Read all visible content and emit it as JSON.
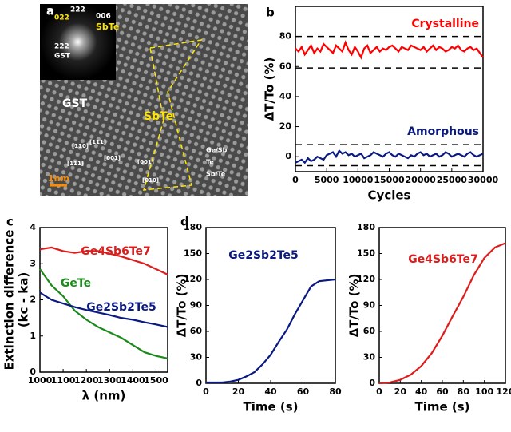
{
  "panel_labels": [
    "a",
    "b",
    "c",
    "d"
  ],
  "image_panel": {
    "texts": [
      "222",
      "022",
      "006",
      "SbTe",
      "222",
      "GST",
      "GST",
      "SbTe",
      "[110]",
      "[111]",
      "[001]",
      "[11̅1]",
      "[001]",
      "[010]",
      "Ge/Sb",
      "Te",
      "Sb/Te",
      "1nm"
    ]
  },
  "chart_data": [
    {
      "type": "line",
      "xlabel": "Cycles",
      "ylabel": "ΔT/To (%)",
      "x": [
        0,
        500,
        1000,
        1500,
        2000,
        2500,
        3000,
        3500,
        4000,
        4500,
        5000,
        5500,
        6000,
        6500,
        7000,
        7500,
        8000,
        8500,
        9000,
        9500,
        10000,
        10500,
        11000,
        11500,
        12000,
        12500,
        13000,
        13500,
        14000,
        14500,
        15000,
        15500,
        16000,
        16500,
        17000,
        17500,
        18000,
        18500,
        19000,
        19500,
        20000,
        20500,
        21000,
        21500,
        22000,
        22500,
        23000,
        23500,
        24000,
        24500,
        25000,
        25500,
        26000,
        26500,
        27000,
        27500,
        28000,
        28500,
        29000,
        29500,
        30000
      ],
      "xlim": [
        0,
        30000
      ],
      "xticks": [
        0,
        5000,
        10000,
        15000,
        20000,
        25000,
        30000
      ],
      "ylim": [
        -10,
        100
      ],
      "yticks": [
        0,
        20,
        40,
        60,
        80
      ],
      "reference_lines": [
        80,
        59,
        8,
        -6
      ],
      "series": [
        {
          "name": "Crystalline",
          "color": "#ff0000",
          "values": [
            72,
            70,
            73,
            68,
            71,
            74,
            69,
            72,
            70,
            75,
            73,
            71,
            69,
            74,
            72,
            70,
            76,
            71,
            68,
            73,
            70,
            66,
            72,
            74,
            69,
            71,
            73,
            70,
            72,
            71,
            73,
            74,
            72,
            70,
            73,
            72,
            71,
            74,
            73,
            72,
            71,
            73,
            70,
            72,
            74,
            71,
            73,
            72,
            70,
            71,
            73,
            72,
            74,
            71,
            70,
            72,
            73,
            71,
            72,
            69,
            66
          ]
        },
        {
          "name": "Amorphous",
          "color": "#0a1a80",
          "values": [
            -4,
            -3,
            -2,
            -4,
            -1,
            -3,
            -2,
            0,
            -1,
            -2,
            1,
            2,
            3,
            0,
            4,
            2,
            3,
            1,
            2,
            0,
            1,
            2,
            -1,
            0,
            1,
            3,
            2,
            1,
            0,
            2,
            3,
            1,
            0,
            2,
            1,
            0,
            -1,
            1,
            0,
            2,
            3,
            1,
            2,
            0,
            1,
            2,
            0,
            1,
            3,
            2,
            0,
            1,
            2,
            1,
            0,
            2,
            3,
            1,
            0,
            1,
            2
          ]
        }
      ]
    },
    {
      "type": "line",
      "xlabel": "λ (nm)",
      "ylabel": [
        "Extinction difference",
        "(kc - ka)"
      ],
      "x": [
        1000,
        1050,
        1100,
        1150,
        1200,
        1250,
        1300,
        1350,
        1400,
        1450,
        1500,
        1550
      ],
      "xlim": [
        1000,
        1550
      ],
      "xticks": [
        1000,
        1100,
        1200,
        1300,
        1400,
        1500
      ],
      "ylim": [
        0,
        4
      ],
      "yticks": [
        0,
        1,
        2,
        3,
        4
      ],
      "series": [
        {
          "name": "Ge4Sb6Te7",
          "color": "#dd1c1c",
          "values": [
            3.4,
            3.45,
            3.35,
            3.3,
            3.35,
            3.35,
            3.28,
            3.2,
            3.1,
            3.0,
            2.85,
            2.7
          ]
        },
        {
          "name": "GeTe",
          "color": "#1a8a1a",
          "values": [
            2.85,
            2.4,
            2.1,
            1.7,
            1.45,
            1.25,
            1.1,
            0.95,
            0.75,
            0.55,
            0.45,
            0.38
          ]
        },
        {
          "name": "Ge2Sb2Te5",
          "color": "#0a1a80",
          "values": [
            2.2,
            2.0,
            1.9,
            1.8,
            1.72,
            1.65,
            1.58,
            1.5,
            1.45,
            1.38,
            1.32,
            1.25
          ]
        }
      ]
    },
    {
      "type": "line",
      "xlabel": "Time (s)",
      "ylabel": "ΔT/To (%)",
      "x": [
        0,
        5,
        10,
        15,
        20,
        25,
        30,
        35,
        40,
        45,
        50,
        55,
        60,
        65,
        70,
        75,
        80
      ],
      "xlim": [
        0,
        80
      ],
      "xticks": [
        0,
        20,
        40,
        60,
        80
      ],
      "ylim": [
        0,
        180
      ],
      "yticks": [
        0,
        30,
        60,
        90,
        120,
        150,
        180
      ],
      "series": [
        {
          "name": "Ge2Sb2Te5",
          "color": "#0a1a80",
          "values": [
            1,
            1,
            1,
            2,
            4,
            8,
            13,
            22,
            33,
            48,
            62,
            80,
            96,
            112,
            118,
            119,
            120
          ]
        }
      ]
    },
    {
      "type": "line",
      "xlabel": "Time (s)",
      "ylabel": "ΔT/To (%)",
      "x": [
        0,
        10,
        20,
        30,
        40,
        50,
        60,
        70,
        80,
        90,
        100,
        110,
        120
      ],
      "xlim": [
        0,
        120
      ],
      "xticks": [
        0,
        20,
        40,
        60,
        80,
        100,
        120
      ],
      "ylim": [
        0,
        180
      ],
      "yticks": [
        0,
        30,
        60,
        90,
        120,
        150,
        180
      ],
      "series": [
        {
          "name": "Ge4Sb6Te7",
          "color": "#dd1c1c",
          "values": [
            0,
            1,
            4,
            10,
            20,
            35,
            55,
            78,
            100,
            125,
            145,
            157,
            162
          ]
        }
      ]
    }
  ]
}
